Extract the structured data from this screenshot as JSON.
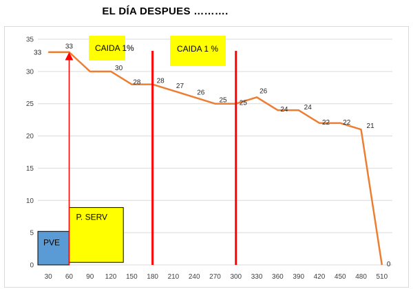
{
  "title": "EL DÍA DESPUES ……….",
  "chart_data": {
    "type": "line",
    "x": [
      30,
      60,
      90,
      120,
      150,
      180,
      210,
      240,
      270,
      300,
      330,
      360,
      390,
      420,
      450,
      480,
      510
    ],
    "series": [
      {
        "values": [
          33,
          33,
          30,
          30,
          28,
          28,
          27,
          26,
          25,
          25,
          26,
          24,
          24,
          22,
          22,
          21,
          0
        ]
      }
    ],
    "data_labels": [
      "33",
      "33",
      "30",
      "28",
      "28",
      "27",
      "26",
      "25",
      "25",
      "26",
      "24",
      "24",
      "22",
      "22",
      "21",
      "0"
    ],
    "data_label_points": [
      0,
      1,
      3,
      4,
      5,
      6,
      7,
      8,
      9,
      10,
      11,
      12,
      13,
      14,
      15,
      16
    ],
    "x_ticks": [
      "30",
      "60",
      "90",
      "120",
      "150",
      "180",
      "210",
      "240",
      "270",
      "300",
      "330",
      "360",
      "390",
      "420",
      "450",
      "480",
      "510"
    ],
    "y_ticks": [
      "0",
      "5",
      "10",
      "15",
      "20",
      "25",
      "30",
      "35"
    ],
    "ylim": [
      0,
      35
    ],
    "xlim": [
      15,
      525
    ],
    "grid": true,
    "legend": "none",
    "colors": {
      "line": "#ED7D31",
      "grid": "#d9d9d9",
      "marker_line": "#FF0000",
      "arrow": "#FF0000",
      "caida_box": "#FFFF00",
      "pve_box": "#5B9BD5",
      "pserv_box": "#FFFF00"
    },
    "vertical_lines": [
      180,
      300
    ],
    "arrow": {
      "x": 60,
      "from_y": 0,
      "to_y": 33
    },
    "annotations": {
      "caida_1": "CAIDA 1%",
      "caida_2": "CAIDA 1 %",
      "pve": "PVE",
      "pserv": "P. SERV"
    }
  }
}
